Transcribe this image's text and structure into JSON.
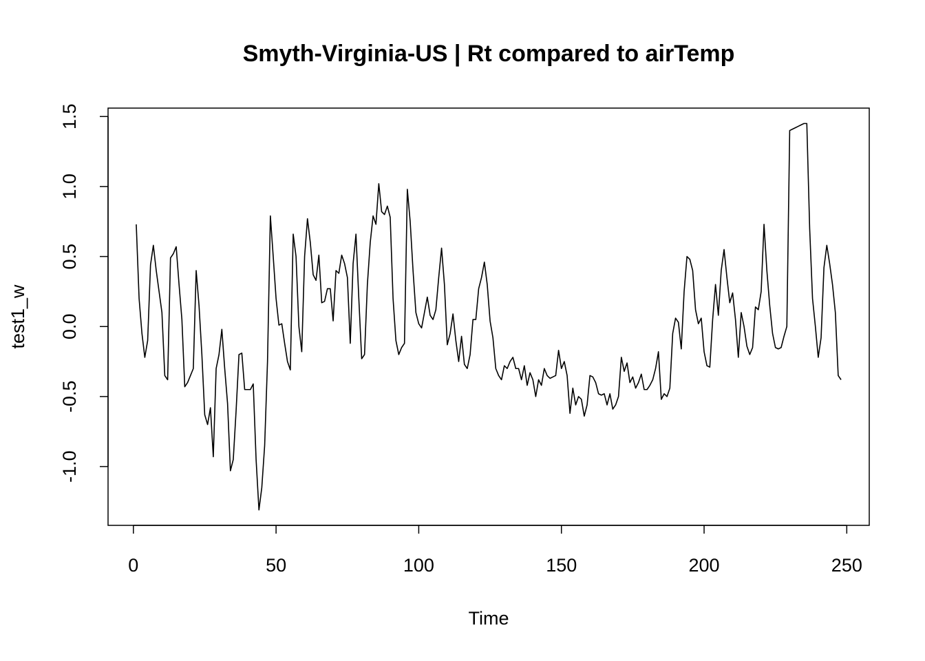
{
  "chart_data": {
    "type": "line",
    "title": "Smyth-Virginia-US | Rt compared to airTemp",
    "xlabel": "Time",
    "ylabel": "test1_w",
    "x": [
      1,
      2,
      3,
      4,
      5,
      6,
      7,
      8,
      9,
      10,
      11,
      12,
      13,
      14,
      15,
      16,
      17,
      18,
      19,
      20,
      21,
      22,
      23,
      24,
      25,
      26,
      27,
      28,
      29,
      30,
      31,
      32,
      33,
      34,
      35,
      36,
      37,
      38,
      39,
      40,
      41,
      42,
      43,
      44,
      45,
      46,
      47,
      48,
      49,
      50,
      51,
      52,
      53,
      54,
      55,
      56,
      57,
      58,
      59,
      60,
      61,
      62,
      63,
      64,
      65,
      66,
      67,
      68,
      69,
      70,
      71,
      72,
      73,
      74,
      75,
      76,
      77,
      78,
      79,
      80,
      81,
      82,
      83,
      84,
      85,
      86,
      87,
      88,
      89,
      90,
      91,
      92,
      93,
      94,
      95,
      96,
      97,
      98,
      99,
      100,
      101,
      102,
      103,
      104,
      105,
      106,
      107,
      108,
      109,
      110,
      111,
      112,
      113,
      114,
      115,
      116,
      117,
      118,
      119,
      120,
      121,
      122,
      123,
      124,
      125,
      126,
      127,
      128,
      129,
      130,
      131,
      132,
      133,
      134,
      135,
      136,
      137,
      138,
      139,
      140,
      141,
      142,
      143,
      144,
      145,
      146,
      147,
      148,
      149,
      150,
      151,
      152,
      153,
      154,
      155,
      156,
      157,
      158,
      159,
      160,
      161,
      162,
      163,
      164,
      165,
      166,
      167,
      168,
      169,
      170,
      171,
      172,
      173,
      174,
      175,
      176,
      177,
      178,
      179,
      180,
      181,
      182,
      183,
      184,
      185,
      186,
      187,
      188,
      189,
      190,
      191,
      192,
      193,
      194,
      195,
      196,
      197,
      198,
      199,
      200,
      201,
      202,
      203,
      204,
      205,
      206,
      207,
      208,
      209,
      210,
      211,
      212,
      213,
      214,
      215,
      216,
      217,
      218,
      219,
      220,
      221,
      222,
      223,
      224,
      225,
      226,
      227,
      228,
      229,
      230,
      231,
      232,
      233,
      234,
      235,
      236,
      237,
      238,
      239,
      240,
      241,
      242,
      243,
      244,
      245,
      246,
      247,
      248
    ],
    "series": [
      {
        "name": "test1_w",
        "color": "#000000",
        "values": [
          0.73,
          0.2,
          -0.05,
          -0.22,
          -0.1,
          0.44,
          0.58,
          0.4,
          0.25,
          0.1,
          -0.35,
          -0.38,
          0.49,
          0.52,
          0.57,
          0.3,
          0.05,
          -0.43,
          -0.4,
          -0.35,
          -0.3,
          0.4,
          0.15,
          -0.2,
          -0.63,
          -0.7,
          -0.58,
          -0.93,
          -0.3,
          -0.2,
          -0.02,
          -0.3,
          -0.55,
          -1.03,
          -0.95,
          -0.6,
          -0.2,
          -0.19,
          -0.45,
          -0.45,
          -0.45,
          -0.41,
          -0.95,
          -1.31,
          -1.15,
          -0.85,
          -0.25,
          0.79,
          0.5,
          0.2,
          0.01,
          0.02,
          -0.12,
          -0.25,
          -0.31,
          0.66,
          0.5,
          0.0,
          -0.18,
          0.5,
          0.77,
          0.6,
          0.37,
          0.33,
          0.51,
          0.17,
          0.18,
          0.27,
          0.27,
          0.04,
          0.4,
          0.38,
          0.51,
          0.45,
          0.35,
          -0.12,
          0.45,
          0.66,
          0.2,
          -0.23,
          -0.2,
          0.3,
          0.6,
          0.79,
          0.73,
          1.02,
          0.82,
          0.8,
          0.86,
          0.78,
          0.2,
          -0.1,
          -0.2,
          -0.15,
          -0.12,
          0.98,
          0.75,
          0.4,
          0.1,
          0.02,
          -0.01,
          0.1,
          0.21,
          0.08,
          0.05,
          0.12,
          0.35,
          0.56,
          0.3,
          -0.13,
          -0.05,
          0.09,
          -0.1,
          -0.25,
          -0.07,
          -0.27,
          -0.3,
          -0.2,
          0.05,
          0.05,
          0.27,
          0.35,
          0.46,
          0.3,
          0.04,
          -0.08,
          -0.3,
          -0.35,
          -0.38,
          -0.28,
          -0.3,
          -0.25,
          -0.22,
          -0.3,
          -0.3,
          -0.38,
          -0.28,
          -0.42,
          -0.33,
          -0.38,
          -0.5,
          -0.38,
          -0.42,
          -0.3,
          -0.35,
          -0.37,
          -0.36,
          -0.35,
          -0.17,
          -0.3,
          -0.25,
          -0.35,
          -0.62,
          -0.44,
          -0.56,
          -0.5,
          -0.52,
          -0.64,
          -0.56,
          -0.35,
          -0.36,
          -0.4,
          -0.48,
          -0.49,
          -0.48,
          -0.56,
          -0.48,
          -0.59,
          -0.56,
          -0.5,
          -0.22,
          -0.32,
          -0.26,
          -0.4,
          -0.36,
          -0.44,
          -0.4,
          -0.34,
          -0.45,
          -0.45,
          -0.42,
          -0.38,
          -0.3,
          -0.18,
          -0.52,
          -0.48,
          -0.5,
          -0.44,
          -0.05,
          0.06,
          0.03,
          -0.16,
          0.25,
          0.5,
          0.48,
          0.4,
          0.12,
          0.02,
          0.06,
          -0.18,
          -0.28,
          -0.29,
          0.05,
          0.3,
          0.08,
          0.4,
          0.55,
          0.35,
          0.17,
          0.24,
          0.05,
          -0.22,
          0.1,
          0.0,
          -0.14,
          -0.2,
          -0.15,
          0.14,
          0.12,
          0.25,
          0.73,
          0.4,
          0.15,
          -0.05,
          -0.15,
          -0.16,
          -0.15,
          -0.07,
          0.0,
          1.4,
          1.41,
          1.42,
          1.43,
          1.44,
          1.45,
          1.45,
          0.7,
          0.2,
          0.0,
          -0.22,
          -0.08,
          0.42,
          0.58,
          0.45,
          0.3,
          0.1,
          -0.35,
          -0.38
        ]
      }
    ],
    "xlim": [
      -8.88,
      257.88
    ],
    "xticks": [
      0,
      50,
      100,
      150,
      200,
      250
    ],
    "ylim": [
      -1.42,
      1.56
    ],
    "yticks": [
      {
        "value": -1,
        "label": "-1.0"
      },
      {
        "value": -0.5,
        "label": "-0.5"
      },
      {
        "value": 0,
        "label": "0.0"
      },
      {
        "value": 0.5,
        "label": "0.5"
      },
      {
        "value": 1,
        "label": "1.0"
      },
      {
        "value": 1.5,
        "label": "1.5"
      }
    ],
    "grid": false
  }
}
